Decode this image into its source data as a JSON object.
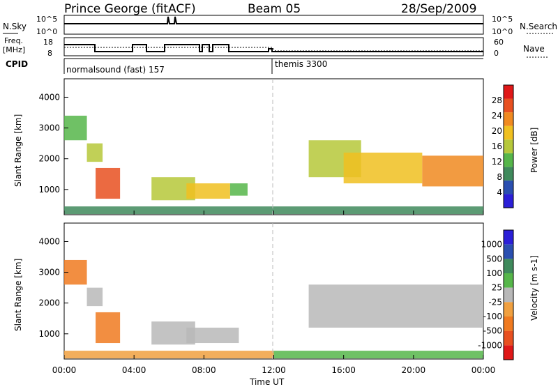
{
  "header": {
    "station": "Prince George (fitACF)",
    "beam": "Beam 05",
    "date": "28/Sep/2009"
  },
  "aux_labels": {
    "nsky": "N.Sky",
    "nsearch": "N.Search",
    "freq_line1": "Freq.",
    "freq_line2": "[MHz]",
    "nave": "Nave",
    "cpid": "CPID",
    "nsky_ticks": [
      "10^5",
      "10^0"
    ],
    "nsearch_ticks": [
      "10^5",
      "10^0"
    ],
    "freq_ticks": [
      "18",
      "8"
    ],
    "nave_ticks": [
      "60",
      "0"
    ]
  },
  "cpid_segments": [
    {
      "label": "normalsound (fast) 157",
      "start": 0,
      "end": 12
    },
    {
      "label": "themis 3300",
      "start": 12,
      "end": 24
    }
  ],
  "colors": {
    "power_scale": [
      "#2b1fd8",
      "#2a4fb0",
      "#3f8a5c",
      "#56b64a",
      "#b6c83a",
      "#f0c020",
      "#f08a20",
      "#e85020",
      "#e01818"
    ],
    "velocity_scale": [
      "#2b1fd8",
      "#2a4fb0",
      "#3f8a5c",
      "#56b64a",
      "#b8b8b8",
      "#f0a040",
      "#f07a20",
      "#e85020",
      "#e01818"
    ]
  },
  "chart_data": [
    {
      "type": "heatmap",
      "name": "power",
      "xlabel": "",
      "ylabel": "Slant Range [km]",
      "ylim": [
        180,
        4600
      ],
      "xlim": [
        0,
        24
      ],
      "yticks": [
        "1000",
        "2000",
        "3000",
        "4000"
      ],
      "ytick_values": [
        1000,
        2000,
        3000,
        4000
      ],
      "colorbar_label": "Power [dB]",
      "colorbar_ticks": [
        "4",
        "8",
        "12",
        "16",
        "20",
        "24",
        "28"
      ],
      "colorbar_tick_values": [
        4,
        8,
        12,
        16,
        20,
        24,
        28
      ],
      "colorbar_range": [
        0,
        32
      ],
      "regions": [
        {
          "t": [
            0.0,
            1.3
          ],
          "r": [
            2600,
            3400
          ],
          "level": 3
        },
        {
          "t": [
            1.3,
            2.2
          ],
          "r": [
            1900,
            2500
          ],
          "level": 4
        },
        {
          "t": [
            1.8,
            3.2
          ],
          "r": [
            700,
            1700
          ],
          "level": 7
        },
        {
          "t": [
            5.0,
            7.5
          ],
          "r": [
            650,
            1400
          ],
          "level": 4
        },
        {
          "t": [
            7.0,
            9.5
          ],
          "r": [
            700,
            1200
          ],
          "level": 5
        },
        {
          "t": [
            9.5,
            10.5
          ],
          "r": [
            800,
            1200
          ],
          "level": 3
        },
        {
          "t": [
            14.0,
            17.0
          ],
          "r": [
            1400,
            2600
          ],
          "level": 4
        },
        {
          "t": [
            16.0,
            20.5
          ],
          "r": [
            1200,
            2200
          ],
          "level": 5
        },
        {
          "t": [
            20.5,
            24.0
          ],
          "r": [
            1100,
            2100
          ],
          "level": 6
        },
        {
          "t": [
            0.0,
            24.0
          ],
          "r": [
            200,
            450
          ],
          "level": 2
        }
      ]
    },
    {
      "type": "heatmap",
      "name": "velocity",
      "xlabel": "Time UT",
      "ylabel": "Slant Range [km]",
      "ylim": [
        180,
        4600
      ],
      "xlim": [
        0,
        24
      ],
      "xticks": [
        "00:00",
        "04:00",
        "08:00",
        "12:00",
        "16:00",
        "20:00",
        "00:00"
      ],
      "xtick_values": [
        0,
        4,
        8,
        12,
        16,
        20,
        24
      ],
      "yticks": [
        "1000",
        "2000",
        "3000",
        "4000"
      ],
      "ytick_values": [
        1000,
        2000,
        3000,
        4000
      ],
      "colorbar_label": "Velocity [m s-1]",
      "colorbar_ticks": [
        "1000",
        "500",
        "100",
        "25",
        "-25",
        "-100",
        "-500",
        "-1000"
      ],
      "regions": [
        {
          "t": [
            0.0,
            1.3
          ],
          "r": [
            2600,
            3400
          ],
          "level": 6
        },
        {
          "t": [
            1.3,
            2.2
          ],
          "r": [
            1900,
            2500
          ],
          "level": 4
        },
        {
          "t": [
            1.8,
            3.2
          ],
          "r": [
            700,
            1700
          ],
          "level": 6
        },
        {
          "t": [
            5.0,
            7.5
          ],
          "r": [
            650,
            1400
          ],
          "level": 4
        },
        {
          "t": [
            7.0,
            10.0
          ],
          "r": [
            700,
            1200
          ],
          "level": 4
        },
        {
          "t": [
            14.0,
            24.0
          ],
          "r": [
            1200,
            2600
          ],
          "level": 4
        },
        {
          "t": [
            0.0,
            12.0
          ],
          "r": [
            200,
            450
          ],
          "level": 5
        },
        {
          "t": [
            12.0,
            24.0
          ],
          "r": [
            200,
            450
          ],
          "level": 3
        }
      ]
    }
  ]
}
